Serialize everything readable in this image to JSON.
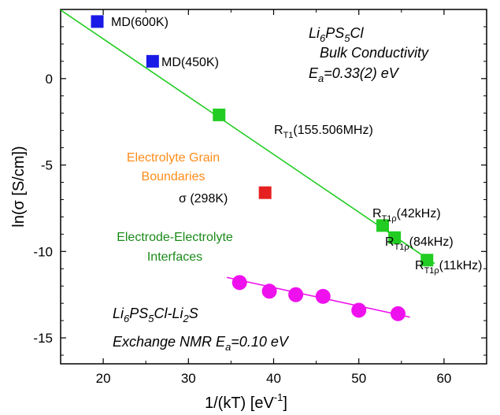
{
  "chart_data": {
    "type": "scatter",
    "xlabel": "1/(kT) [eV⁻¹]",
    "ylabel": "ln(σ [S/cm])",
    "xlim": [
      15,
      65
    ],
    "ylim": [
      -16.5,
      4
    ],
    "x_ticks": [
      20,
      30,
      40,
      50,
      60
    ],
    "y_ticks": [
      0,
      -5,
      -10,
      -15
    ],
    "grid": false,
    "series": [
      {
        "marker": "square",
        "color": "#1a1ae6",
        "points": [
          {
            "x": 19.3,
            "y": 3.3,
            "label": "MD(600K)"
          },
          {
            "x": 25.8,
            "y": 1.0,
            "label": "MD(450K)"
          }
        ]
      },
      {
        "marker": "square",
        "color": "#22cc22",
        "points": [
          {
            "x": 33.6,
            "y": -2.1,
            "label": "R_T1(155.506MHz)"
          },
          {
            "x": 52.8,
            "y": -8.5,
            "label": "R_T1ρ(42kHz)"
          },
          {
            "x": 54.2,
            "y": -9.2,
            "label": "R_T1ρ(84kHz)"
          },
          {
            "x": 58.0,
            "y": -10.5,
            "label": "R_T1ρ(11kHz)"
          }
        ]
      },
      {
        "marker": "square",
        "color": "#e62020",
        "points": [
          {
            "x": 39.0,
            "y": -6.6,
            "label": "σ (298K)"
          }
        ]
      },
      {
        "marker": "circle",
        "color": "#ee11ee",
        "points": [
          {
            "x": 36.0,
            "y": -11.8
          },
          {
            "x": 39.5,
            "y": -12.3
          },
          {
            "x": 42.6,
            "y": -12.5
          },
          {
            "x": 45.8,
            "y": -12.6
          },
          {
            "x": 50.0,
            "y": -13.4
          },
          {
            "x": 54.6,
            "y": -13.6
          }
        ]
      }
    ],
    "fit_lines": [
      {
        "color": "#22cc22",
        "x": [
          14.9,
          58.9
        ],
        "y": [
          4.0,
          -10.7
        ]
      },
      {
        "color": "#ee11ee",
        "x": [
          34.5,
          56.0
        ],
        "y": [
          -11.5,
          -13.8
        ]
      }
    ],
    "annotations": {
      "md600": "MD(600K)",
      "md450": "MD(450K)",
      "rt1_prefix": "R",
      "rt1_sub": "T1",
      "rt1_tail": "(155.506MHz)",
      "rt1rho_prefix": "R",
      "rt1rho_sub": "T1ρ",
      "rt1rho_42": "(42kHz)",
      "rt1rho_84": "(84kHz)",
      "rt1rho_11": "(11kHz)",
      "sigma": "σ (298K)",
      "grain_1": "Electrolyte Grain",
      "grain_2": "Boundaries",
      "electrode_1": "Electrode-Electrolyte",
      "electrode_2": "Interfaces",
      "bulk_conductivity": "Bulk Conductivity",
      "ea_bulk": "=0.33(2) eV",
      "exchange_nmr": "Exchange NMR E",
      "ea_exchange": "=0.10 eV"
    }
  }
}
